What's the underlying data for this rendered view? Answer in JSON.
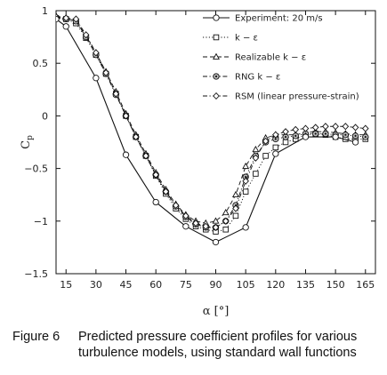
{
  "caption": {
    "number": "Figure 6",
    "line1": "Predicted pressure coefficient profiles for various",
    "line2": "turbulence models, using standard wall functions"
  },
  "chart_data": {
    "type": "line",
    "xlabel": "α [°]",
    "ylabel": "Cp",
    "xlim": [
      10,
      170
    ],
    "ylim": [
      -1.5,
      1
    ],
    "xticks": [
      15,
      30,
      45,
      60,
      75,
      90,
      105,
      120,
      135,
      150,
      165
    ],
    "yticks": [
      -1.5,
      -1,
      -0.5,
      0,
      0.5,
      1
    ],
    "ytick_labels": [
      "−1.5",
      "−1",
      "−0.5",
      "0",
      "0.5",
      "1"
    ],
    "grid": false,
    "legend_position": "top-right",
    "series": [
      {
        "name": "Experiment:  20 m/s",
        "marker": "circle",
        "line": "solid",
        "x": [
          10,
          15,
          30,
          45,
          60,
          75,
          90,
          105,
          120,
          135,
          150,
          160
        ],
        "y": [
          0.92,
          0.85,
          0.36,
          -0.37,
          -0.82,
          -1.05,
          -1.2,
          -1.06,
          -0.36,
          -0.2,
          -0.2,
          -0.25
        ]
      },
      {
        "name": "k − ε",
        "marker": "square",
        "line": "dotted",
        "x": [
          10,
          15,
          20,
          25,
          30,
          35,
          40,
          45,
          50,
          55,
          60,
          65,
          70,
          75,
          80,
          85,
          90,
          95,
          100,
          105,
          110,
          115,
          120,
          125,
          130,
          135,
          140,
          145,
          150,
          155,
          160,
          165
        ],
        "y": [
          0.93,
          0.92,
          0.88,
          0.74,
          0.58,
          0.4,
          0.21,
          0.0,
          -0.2,
          -0.38,
          -0.57,
          -0.74,
          -0.88,
          -0.98,
          -1.05,
          -1.08,
          -1.1,
          -1.08,
          -0.95,
          -0.72,
          -0.55,
          -0.38,
          -0.3,
          -0.25,
          -0.22,
          -0.18,
          -0.17,
          -0.18,
          -0.2,
          -0.22,
          -0.22,
          -0.22
        ]
      },
      {
        "name": "Realizable  k − ε",
        "marker": "triangle",
        "line": "dashed",
        "x": [
          10,
          15,
          20,
          25,
          30,
          35,
          40,
          45,
          50,
          55,
          60,
          65,
          70,
          75,
          80,
          85,
          90,
          95,
          100,
          105,
          110,
          115,
          120,
          125,
          130,
          135,
          140,
          145,
          150,
          155,
          160,
          165
        ],
        "y": [
          0.95,
          0.93,
          0.9,
          0.76,
          0.6,
          0.42,
          0.23,
          0.02,
          -0.18,
          -0.36,
          -0.54,
          -0.7,
          -0.84,
          -0.94,
          -1.0,
          -1.02,
          -1.0,
          -0.92,
          -0.75,
          -0.48,
          -0.32,
          -0.21,
          -0.18,
          -0.18,
          -0.18,
          -0.16,
          -0.15,
          -0.15,
          -0.16,
          -0.17,
          -0.18,
          -0.18
        ]
      },
      {
        "name": "RNG  k − ε",
        "marker": "dotted-circle",
        "line": "dash-dot",
        "x": [
          10,
          15,
          20,
          25,
          30,
          35,
          40,
          45,
          50,
          55,
          60,
          65,
          70,
          75,
          80,
          85,
          90,
          95,
          100,
          105,
          110,
          115,
          120,
          125,
          130,
          135,
          140,
          145,
          150,
          155,
          160,
          165
        ],
        "y": [
          0.93,
          0.92,
          0.9,
          0.75,
          0.58,
          0.4,
          0.2,
          0.0,
          -0.2,
          -0.38,
          -0.56,
          -0.72,
          -0.86,
          -0.96,
          -1.03,
          -1.06,
          -1.06,
          -1.0,
          -0.85,
          -0.58,
          -0.38,
          -0.25,
          -0.22,
          -0.2,
          -0.19,
          -0.17,
          -0.17,
          -0.17,
          -0.18,
          -0.18,
          -0.19,
          -0.2
        ]
      },
      {
        "name": "RSM  (linear pressure-strain)",
        "marker": "diamond",
        "line": "dash-dot",
        "x": [
          10,
          15,
          20,
          25,
          30,
          35,
          40,
          45,
          50,
          55,
          60,
          65,
          70,
          75,
          80,
          85,
          90,
          95,
          100,
          105,
          110,
          115,
          120,
          125,
          130,
          135,
          140,
          145,
          150,
          155,
          160,
          165
        ],
        "y": [
          0.94,
          0.93,
          0.92,
          0.77,
          0.6,
          0.41,
          0.21,
          0.0,
          -0.2,
          -0.38,
          -0.56,
          -0.72,
          -0.85,
          -0.95,
          -1.02,
          -1.05,
          -1.06,
          -1.0,
          -0.88,
          -0.62,
          -0.4,
          -0.24,
          -0.18,
          -0.15,
          -0.13,
          -0.12,
          -0.11,
          -0.1,
          -0.1,
          -0.1,
          -0.11,
          -0.12
        ]
      }
    ]
  }
}
